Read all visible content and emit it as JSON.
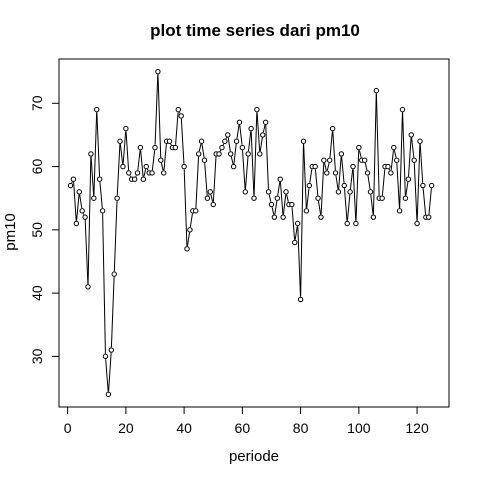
{
  "chart_data": {
    "type": "line",
    "title": "plot time series dari pm10",
    "xlabel": "periode",
    "ylabel": "pm10",
    "xlim": [
      -2.96,
      130.96
    ],
    "ylim": [
      22.0,
      77.0
    ],
    "xticks": [
      0,
      20,
      40,
      60,
      80,
      100,
      120
    ],
    "yticks": [
      30,
      40,
      50,
      60,
      70
    ],
    "x": [
      1,
      2,
      3,
      4,
      5,
      6,
      7,
      8,
      9,
      10,
      11,
      12,
      13,
      14,
      15,
      16,
      17,
      18,
      19,
      20,
      21,
      22,
      23,
      24,
      25,
      26,
      27,
      28,
      29,
      30,
      31,
      32,
      33,
      34,
      35,
      36,
      37,
      38,
      39,
      40,
      41,
      42,
      43,
      44,
      45,
      46,
      47,
      48,
      49,
      50,
      51,
      52,
      53,
      54,
      55,
      56,
      57,
      58,
      59,
      60,
      61,
      62,
      63,
      64,
      65,
      66,
      67,
      68,
      69,
      70,
      71,
      72,
      73,
      74,
      75,
      76,
      77,
      78,
      79,
      80,
      81,
      82,
      83,
      84,
      85,
      86,
      87,
      88,
      89,
      90,
      91,
      92,
      93,
      94,
      95,
      96,
      97,
      98,
      99,
      100,
      101,
      102,
      103,
      104,
      105,
      106,
      107,
      108,
      109,
      110,
      111,
      112,
      113,
      114,
      115,
      116,
      117,
      118,
      119,
      120,
      121,
      122,
      123,
      124,
      125
    ],
    "y": [
      57,
      58,
      51,
      56,
      53,
      52,
      41,
      62,
      55,
      69,
      58,
      53,
      30,
      24,
      31,
      43,
      55,
      64,
      60,
      66,
      59,
      58,
      58,
      59,
      63,
      58,
      60,
      59,
      59,
      63,
      75,
      61,
      59,
      64,
      64,
      63,
      63,
      69,
      68,
      60,
      47,
      50,
      53,
      53,
      62,
      64,
      61,
      55,
      56,
      54,
      62,
      62,
      63,
      64,
      65,
      62,
      60,
      64,
      67,
      63,
      56,
      62,
      66,
      55,
      69,
      62,
      65,
      67,
      56,
      54,
      52,
      55,
      58,
      52,
      56,
      54,
      54,
      48,
      51,
      39,
      64,
      53,
      57,
      60,
      60,
      55,
      52,
      61,
      59,
      61,
      66,
      59,
      56,
      62,
      57,
      51,
      56,
      60,
      51,
      63,
      61,
      61,
      59,
      56,
      52,
      72,
      55,
      55,
      60,
      60,
      59,
      63,
      61,
      53,
      69,
      55,
      58,
      65,
      61,
      51,
      64,
      57,
      52,
      52,
      57
    ]
  }
}
